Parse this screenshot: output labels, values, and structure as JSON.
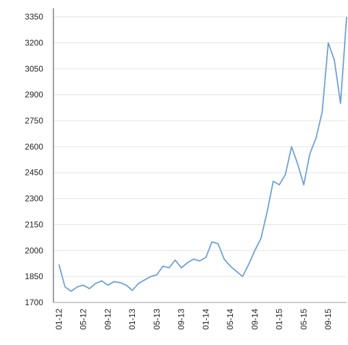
{
  "chart_data": {
    "type": "line",
    "title": "",
    "xlabel": "",
    "ylabel": "",
    "ylim": [
      1700,
      3400
    ],
    "y_ticks": [
      1700,
      1850,
      2000,
      2150,
      2300,
      2450,
      2600,
      2750,
      2900,
      3050,
      3200,
      3350
    ],
    "x_tick_labels": [
      "01-12",
      "05-12",
      "09-12",
      "01-13",
      "05-13",
      "09-13",
      "01-14",
      "05-14",
      "09-14",
      "01-15",
      "05-15",
      "09-15"
    ],
    "x_range": [
      "01-12",
      "12-15"
    ],
    "grid": "horizontal",
    "legend": "none",
    "line_color": "#6a9fd8",
    "series": [
      {
        "x": [
          "01-12",
          "02-12",
          "03-12",
          "04-12",
          "05-12",
          "06-12",
          "07-12",
          "08-12",
          "09-12",
          "10-12",
          "11-12",
          "12-12",
          "01-13",
          "02-13",
          "03-13",
          "04-13",
          "05-13",
          "06-13",
          "07-13",
          "08-13",
          "09-13",
          "10-13",
          "11-13",
          "12-13",
          "01-14",
          "02-14",
          "03-14",
          "04-14",
          "05-14",
          "06-14",
          "07-14",
          "08-14",
          "09-14",
          "10-14",
          "11-14",
          "12-14",
          "01-15",
          "02-15",
          "03-15",
          "04-15",
          "05-15",
          "06-15",
          "07-15",
          "08-15",
          "09-15",
          "10-15",
          "11-15",
          "12-15"
        ],
        "values": [
          1920,
          1790,
          1765,
          1790,
          1800,
          1780,
          1810,
          1825,
          1800,
          1820,
          1815,
          1800,
          1770,
          1810,
          1830,
          1850,
          1860,
          1910,
          1900,
          1945,
          1900,
          1930,
          1950,
          1940,
          1960,
          2050,
          2040,
          1950,
          1910,
          1880,
          1850,
          1920,
          2000,
          2070,
          2220,
          2400,
          2380,
          2440,
          2600,
          2500,
          2380,
          2560,
          2650,
          2800,
          3200,
          3100,
          2850,
          3350
        ]
      }
    ]
  }
}
